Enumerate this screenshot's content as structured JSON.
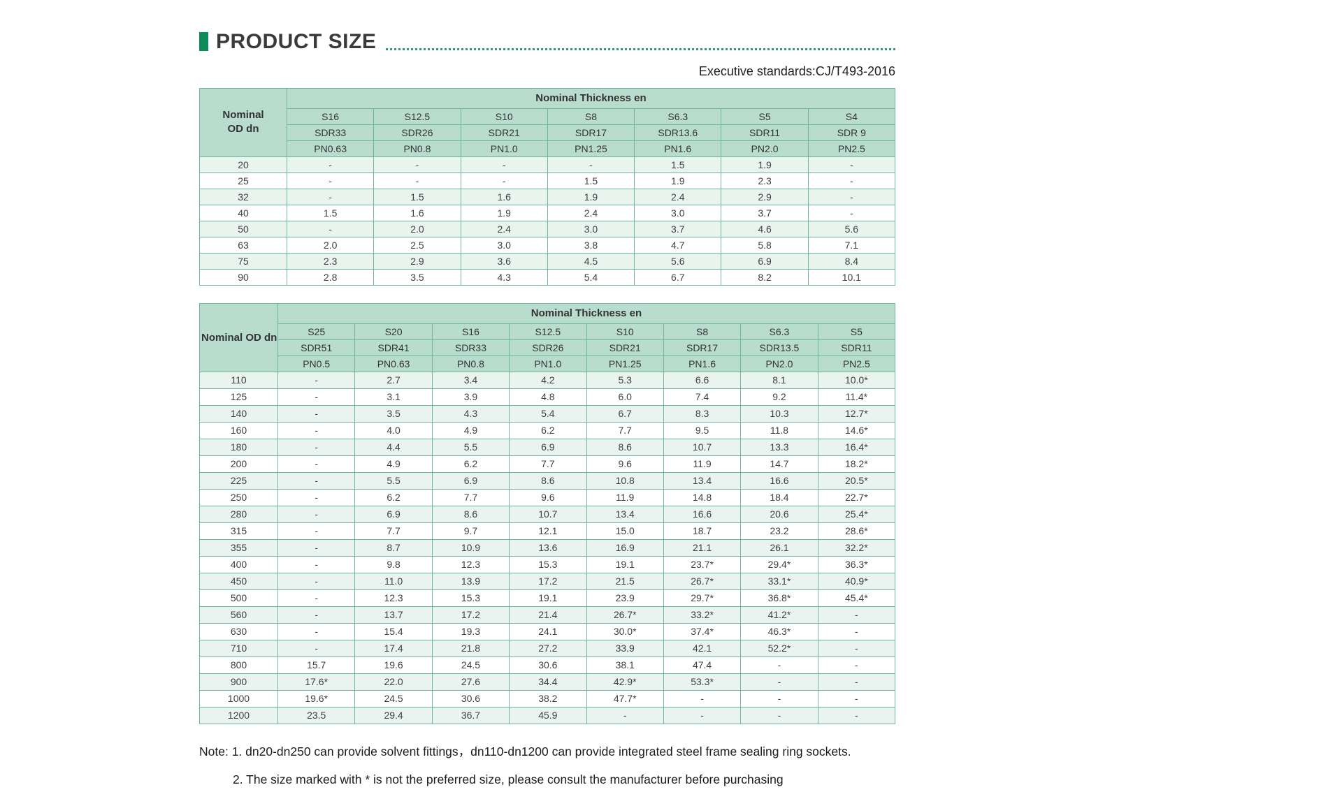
{
  "page": {
    "title": "PRODUCT SIZE",
    "standard": "Executive standards:CJ/T493-2016",
    "notes": [
      "Note: 1. dn20-dn250 can provide solvent fittings，dn110-dn1200 can provide integrated steel frame sealing ring sockets.",
      "2. The size marked with * is not the preferred size, please consult the manufacturer before purchasing"
    ]
  },
  "colors": {
    "accent_green": "#0d8a57",
    "header_bg": "#b8dccd",
    "row_tint": "#e9f4ef",
    "border_green": "#6fb69d",
    "leader_dots": "#2b9c6f"
  },
  "table1": {
    "corner_label": "Nominal OD dn",
    "group_header": "Nominal Thickness en",
    "s_row": [
      "S16",
      "S12.5",
      "S10",
      "S8",
      "S6.3",
      "S5",
      "S4"
    ],
    "sdr_row": [
      "SDR33",
      "SDR26",
      "SDR21",
      "SDR17",
      "SDR13.6",
      "SDR11",
      "SDR 9"
    ],
    "pn_row": [
      "PN0.63",
      "PN0.8",
      "PN1.0",
      "PN1.25",
      "PN1.6",
      "PN2.0",
      "PN2.5"
    ],
    "rows": [
      {
        "dn": "20",
        "values": [
          "-",
          "-",
          "-",
          "-",
          "1.5",
          "1.9",
          "-"
        ]
      },
      {
        "dn": "25",
        "values": [
          "-",
          "-",
          "-",
          "1.5",
          "1.9",
          "2.3",
          "-"
        ]
      },
      {
        "dn": "32",
        "values": [
          "-",
          "1.5",
          "1.6",
          "1.9",
          "2.4",
          "2.9",
          "-"
        ]
      },
      {
        "dn": "40",
        "values": [
          "1.5",
          "1.6",
          "1.9",
          "2.4",
          "3.0",
          "3.7",
          "-"
        ]
      },
      {
        "dn": "50",
        "values": [
          "-",
          "2.0",
          "2.4",
          "3.0",
          "3.7",
          "4.6",
          "5.6"
        ]
      },
      {
        "dn": "63",
        "values": [
          "2.0",
          "2.5",
          "3.0",
          "3.8",
          "4.7",
          "5.8",
          "7.1"
        ]
      },
      {
        "dn": "75",
        "values": [
          "2.3",
          "2.9",
          "3.6",
          "4.5",
          "5.6",
          "6.9",
          "8.4"
        ]
      },
      {
        "dn": "90",
        "values": [
          "2.8",
          "3.5",
          "4.3",
          "5.4",
          "6.7",
          "8.2",
          "10.1"
        ]
      }
    ]
  },
  "table2": {
    "corner_label": "Nominal OD dn",
    "group_header": "Nominal Thickness en",
    "s_row": [
      "S25",
      "S20",
      "S16",
      "S12.5",
      "S10",
      "S8",
      "S6.3",
      "S5"
    ],
    "sdr_row": [
      "SDR51",
      "SDR41",
      "SDR33",
      "SDR26",
      "SDR21",
      "SDR17",
      "SDR13.5",
      "SDR11"
    ],
    "pn_row": [
      "PN0.5",
      "PN0.63",
      "PN0.8",
      "PN1.0",
      "PN1.25",
      "PN1.6",
      "PN2.0",
      "PN2.5"
    ],
    "rows": [
      {
        "dn": "110",
        "values": [
          "-",
          "2.7",
          "3.4",
          "4.2",
          "5.3",
          "6.6",
          "8.1",
          "10.0*"
        ]
      },
      {
        "dn": "125",
        "values": [
          "-",
          "3.1",
          "3.9",
          "4.8",
          "6.0",
          "7.4",
          "9.2",
          "11.4*"
        ]
      },
      {
        "dn": "140",
        "values": [
          "-",
          "3.5",
          "4.3",
          "5.4",
          "6.7",
          "8.3",
          "10.3",
          "12.7*"
        ]
      },
      {
        "dn": "160",
        "values": [
          "-",
          "4.0",
          "4.9",
          "6.2",
          "7.7",
          "9.5",
          "11.8",
          "14.6*"
        ]
      },
      {
        "dn": "180",
        "values": [
          "-",
          "4.4",
          "5.5",
          "6.9",
          "8.6",
          "10.7",
          "13.3",
          "16.4*"
        ]
      },
      {
        "dn": "200",
        "values": [
          "-",
          "4.9",
          "6.2",
          "7.7",
          "9.6",
          "11.9",
          "14.7",
          "18.2*"
        ]
      },
      {
        "dn": "225",
        "values": [
          "-",
          "5.5",
          "6.9",
          "8.6",
          "10.8",
          "13.4",
          "16.6",
          "20.5*"
        ]
      },
      {
        "dn": "250",
        "values": [
          "-",
          "6.2",
          "7.7",
          "9.6",
          "11.9",
          "14.8",
          "18.4",
          "22.7*"
        ]
      },
      {
        "dn": "280",
        "values": [
          "-",
          "6.9",
          "8.6",
          "10.7",
          "13.4",
          "16.6",
          "20.6",
          "25.4*"
        ]
      },
      {
        "dn": "315",
        "values": [
          "-",
          "7.7",
          "9.7",
          "12.1",
          "15.0",
          "18.7",
          "23.2",
          "28.6*"
        ]
      },
      {
        "dn": "355",
        "values": [
          "-",
          "8.7",
          "10.9",
          "13.6",
          "16.9",
          "21.1",
          "26.1",
          "32.2*"
        ]
      },
      {
        "dn": "400",
        "values": [
          "-",
          "9.8",
          "12.3",
          "15.3",
          "19.1",
          "23.7*",
          "29.4*",
          "36.3*"
        ]
      },
      {
        "dn": "450",
        "values": [
          "-",
          "11.0",
          "13.9",
          "17.2",
          "21.5",
          "26.7*",
          "33.1*",
          "40.9*"
        ]
      },
      {
        "dn": "500",
        "values": [
          "-",
          "12.3",
          "15.3",
          "19.1",
          "23.9",
          "29.7*",
          "36.8*",
          "45.4*"
        ]
      },
      {
        "dn": "560",
        "values": [
          "-",
          "13.7",
          "17.2",
          "21.4",
          "26.7*",
          "33.2*",
          "41.2*",
          "-"
        ]
      },
      {
        "dn": "630",
        "values": [
          "-",
          "15.4",
          "19.3",
          "24.1",
          "30.0*",
          "37.4*",
          "46.3*",
          "-"
        ]
      },
      {
        "dn": "710",
        "values": [
          "-",
          "17.4",
          "21.8",
          "27.2",
          "33.9",
          "42.1",
          "52.2*",
          "-"
        ]
      },
      {
        "dn": "800",
        "values": [
          "15.7",
          "19.6",
          "24.5",
          "30.6",
          "38.1",
          "47.4",
          "-",
          "-"
        ]
      },
      {
        "dn": "900",
        "values": [
          "17.6*",
          "22.0",
          "27.6",
          "34.4",
          "42.9*",
          "53.3*",
          "-",
          "-"
        ]
      },
      {
        "dn": "1000",
        "values": [
          "19.6*",
          "24.5",
          "30.6",
          "38.2",
          "47.7*",
          "-",
          "-",
          "-"
        ]
      },
      {
        "dn": "1200",
        "values": [
          "23.5",
          "29.4",
          "36.7",
          "45.9",
          "-",
          "-",
          "-",
          "-"
        ]
      }
    ]
  }
}
